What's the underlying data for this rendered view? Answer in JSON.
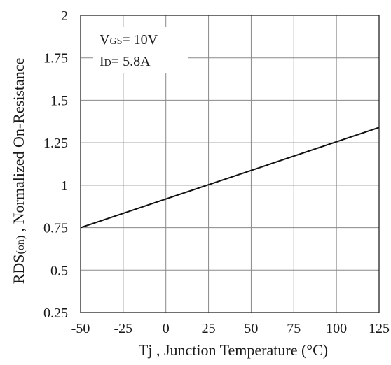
{
  "chart_data": {
    "type": "line",
    "xlabel_main": "Tj",
    "xlabel_rest": " , Junction Temperature (°C)",
    "ylabel_main": "RDS",
    "ylabel_sub": "(on)",
    "ylabel_rest": " , Normalized On-Resistance",
    "xlim": [
      -50,
      125
    ],
    "ylim": [
      0.25,
      2
    ],
    "x_ticks": [
      -50,
      -25,
      0,
      25,
      50,
      75,
      100,
      125
    ],
    "x_tick_labels": [
      "-50",
      "-25",
      "0",
      "25",
      "50",
      "75",
      "100",
      "125"
    ],
    "y_ticks": [
      0.25,
      0.5,
      0.75,
      1,
      1.25,
      1.5,
      1.75,
      2
    ],
    "y_tick_labels": [
      "0.25",
      "0.5",
      "0.75",
      "1",
      "1.25",
      "1.5",
      "1.75",
      "2"
    ],
    "grid": true,
    "series": [
      {
        "x": [
          -50,
          125
        ],
        "y": [
          0.75,
          1.34
        ]
      }
    ],
    "annotations": {
      "vgs_prefix": "V",
      "vgs_sub": "GS",
      "vgs_value": "= 10V",
      "id_prefix": "I",
      "id_sub": "D",
      "id_value": "= 5.8A"
    }
  }
}
